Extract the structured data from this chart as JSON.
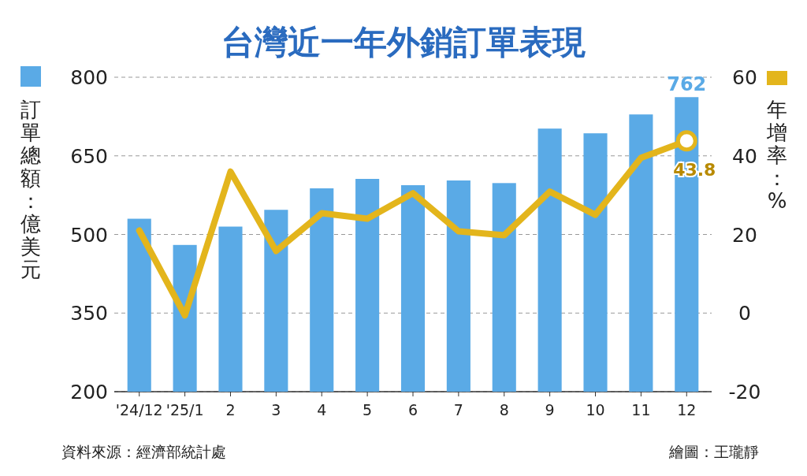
{
  "chart_data": {
    "type": "bar",
    "title": "台灣近一年外銷訂單表現",
    "ylabel": "訂單總額：億美元",
    "y2label": "年增率：%",
    "categories": [
      "'24/12",
      "'25/1",
      "2",
      "3",
      "4",
      "5",
      "6",
      "7",
      "8",
      "9",
      "10",
      "11",
      "12"
    ],
    "series": [
      {
        "color": "#5aaae6",
        "values": [
          530,
          480,
          515,
          547,
          588,
          606,
          594,
          603,
          598,
          702,
          693,
          729,
          762
        ],
        "value_labels": [
          null,
          null,
          null,
          null,
          null,
          null,
          null,
          null,
          null,
          null,
          null,
          null,
          "762"
        ]
      },
      {
        "type": "line",
        "axis": "y2",
        "color": "#e3b51c",
        "values": [
          21,
          -0.6,
          36,
          15.8,
          25.4,
          24,
          30.5,
          20.8,
          19.8,
          30.9,
          25,
          39.5,
          43.8
        ],
        "value_labels": [
          null,
          null,
          null,
          null,
          null,
          null,
          null,
          null,
          null,
          null,
          null,
          null,
          "43.8"
        ]
      }
    ],
    "ylim": [
      200,
      800
    ],
    "yticks": [
      200,
      350,
      500,
      650,
      800
    ],
    "y2lim": [
      -20,
      60
    ],
    "y2ticks": [
      -20,
      0,
      20,
      40,
      60
    ],
    "grid": "y",
    "marker": "none",
    "line_style": "solid",
    "annotations": [
      "資料來源：經濟部統計處",
      "繪圖：王瓏靜"
    ]
  }
}
